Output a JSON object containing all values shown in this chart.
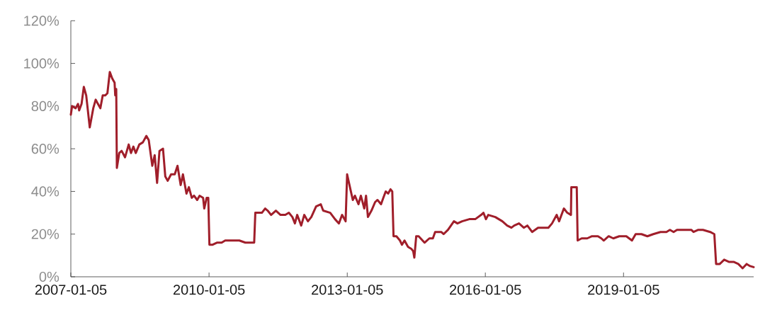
{
  "chart_data": {
    "type": "line",
    "color": "#a01e2a",
    "line_style": "solid",
    "xlim": [
      "2007-01-05",
      "2021-11-02"
    ],
    "xticks": [
      "2007-01-05",
      "2010-01-05",
      "2013-01-05",
      "2016-01-05",
      "2019-01-05"
    ],
    "ylim": [
      0,
      120
    ],
    "yticks": [
      {
        "value": 0,
        "label": "0%"
      },
      {
        "value": 20,
        "label": "20%"
      },
      {
        "value": 40,
        "label": "40%"
      },
      {
        "value": 60,
        "label": "60%"
      },
      {
        "value": 80,
        "label": "80%"
      },
      {
        "value": 100,
        "label": "100%"
      },
      {
        "value": 120,
        "label": "120%"
      }
    ],
    "x": [
      "2007-01-05",
      "2007-01-15",
      "2007-02-12",
      "2007-03-03",
      "2007-03-12",
      "2007-03-31",
      "2007-04-18",
      "2007-05-07",
      "2007-06-04",
      "2007-07-02",
      "2007-07-21",
      "2007-08-08",
      "2007-08-27",
      "2007-09-15",
      "2007-10-04",
      "2007-10-22",
      "2007-11-10",
      "2007-11-29",
      "2007-12-18",
      "2007-12-23",
      "2007-12-31",
      "2008-01-05",
      "2008-01-24",
      "2008-02-12",
      "2008-03-10",
      "2008-04-08",
      "2008-04-26",
      "2008-05-15",
      "2008-06-03",
      "2008-07-01",
      "2008-07-29",
      "2008-08-26",
      "2008-09-14",
      "2008-10-12",
      "2008-10-31",
      "2008-11-19",
      "2008-12-08",
      "2009-01-05",
      "2009-01-23",
      "2009-02-11",
      "2009-03-10",
      "2009-04-08",
      "2009-04-30",
      "2009-05-25",
      "2009-06-12",
      "2009-07-10",
      "2009-07-29",
      "2009-08-21",
      "2009-09-08",
      "2009-10-03",
      "2009-10-22",
      "2009-11-19",
      "2009-11-28",
      "2009-12-17",
      "2009-12-30",
      "2010-01-08",
      "2010-01-31",
      "2010-03-08",
      "2010-04-15",
      "2010-05-13",
      "2010-06-29",
      "2010-09-02",
      "2010-10-20",
      "2010-12-29",
      "2011-01-07",
      "2011-01-31",
      "2011-02-28",
      "2011-03-26",
      "2011-04-15",
      "2011-05-12",
      "2011-06-19",
      "2011-07-26",
      "2011-09-02",
      "2011-09-30",
      "2011-10-28",
      "2011-11-17",
      "2011-12-05",
      "2012-01-06",
      "2012-01-30",
      "2012-02-28",
      "2012-03-26",
      "2012-05-03",
      "2012-06-09",
      "2012-06-28",
      "2012-08-23",
      "2012-09-30",
      "2012-10-31",
      "2012-11-25",
      "2012-12-23",
      "2013-01-04",
      "2013-01-30",
      "2013-02-18",
      "2013-03-07",
      "2013-04-04",
      "2013-04-23",
      "2013-05-20",
      "2013-06-03",
      "2013-06-18",
      "2013-07-16",
      "2013-08-14",
      "2013-09-02",
      "2013-09-30",
      "2013-10-18",
      "2013-11-06",
      "2013-11-25",
      "2013-12-14",
      "2013-12-28",
      "2014-01-07",
      "2014-01-30",
      "2014-02-27",
      "2014-03-15",
      "2014-04-04",
      "2014-05-02",
      "2014-05-30",
      "2014-06-12",
      "2014-06-21",
      "2014-07-06",
      "2014-07-25",
      "2014-09-10",
      "2014-10-18",
      "2014-11-15",
      "2014-12-03",
      "2014-12-31",
      "2015-01-20",
      "2015-02-08",
      "2015-03-15",
      "2015-05-01",
      "2015-05-29",
      "2015-07-05",
      "2015-08-31",
      "2015-10-17",
      "2015-12-03",
      "2015-12-21",
      "2016-01-10",
      "2016-01-28",
      "2016-03-24",
      "2016-05-19",
      "2016-06-26",
      "2016-07-30",
      "2016-08-21",
      "2016-09-28",
      "2016-11-05",
      "2016-12-03",
      "2017-01-10",
      "2017-02-26",
      "2017-03-24",
      "2017-04-21",
      "2017-05-19",
      "2017-06-17",
      "2017-07-24",
      "2017-08-12",
      "2017-09-19",
      "2017-10-16",
      "2017-11-14",
      "2017-11-17",
      "2017-12-12",
      "2017-12-30",
      "2018-01-06",
      "2018-02-07",
      "2018-03-23",
      "2018-04-30",
      "2018-06-16",
      "2018-07-13",
      "2018-08-01",
      "2018-09-09",
      "2018-10-16",
      "2018-12-02",
      "2019-01-27",
      "2019-03-13",
      "2019-04-11",
      "2019-05-27",
      "2019-07-13",
      "2019-08-29",
      "2019-10-25",
      "2019-12-11",
      "2020-01-08",
      "2020-02-06",
      "2020-03-04",
      "2020-04-29",
      "2020-06-25",
      "2020-07-13",
      "2020-08-20",
      "2020-09-26",
      "2020-11-22",
      "2020-12-25",
      "2021-01-08",
      "2021-02-06",
      "2021-03-13",
      "2021-04-19",
      "2021-05-27",
      "2021-07-03",
      "2021-08-06",
      "2021-09-07",
      "2021-10-05",
      "2021-11-02"
    ],
    "values": [
      76,
      80,
      79,
      81,
      78,
      81,
      89,
      85,
      70,
      79,
      83,
      81,
      79,
      85,
      85,
      86,
      96,
      93,
      91,
      85,
      88,
      51,
      58,
      59,
      56,
      62,
      58,
      61,
      58,
      62,
      63,
      66,
      64,
      52,
      57,
      44,
      59,
      60,
      47,
      45,
      48,
      48,
      52,
      43,
      48,
      39,
      42,
      37,
      38,
      36,
      38,
      37,
      32,
      37,
      37,
      15,
      15,
      16,
      16,
      17,
      17,
      17,
      16,
      16,
      30,
      30,
      30,
      32,
      31,
      29,
      31,
      29,
      29,
      30,
      28,
      25,
      29,
      24,
      29,
      26,
      28,
      33,
      34,
      31,
      30,
      27,
      25,
      29,
      26,
      48,
      41,
      36,
      38,
      34,
      38,
      32,
      38,
      28,
      31,
      35,
      36,
      34,
      37,
      40,
      39,
      41,
      40,
      19,
      19,
      17,
      15,
      17,
      14,
      13,
      12,
      9,
      19,
      19,
      16,
      18,
      18,
      21,
      21,
      21,
      20,
      22,
      26,
      25,
      26,
      27,
      27,
      29,
      30,
      27,
      29,
      28,
      26,
      24,
      23,
      24,
      25,
      23,
      24,
      21,
      23,
      23,
      23,
      23,
      25,
      29,
      26,
      32,
      30,
      29,
      42,
      42,
      42,
      17,
      18,
      18,
      19,
      19,
      18,
      17,
      19,
      18,
      19,
      19,
      17,
      20,
      20,
      19,
      20,
      21,
      21,
      22,
      21,
      22,
      22,
      22,
      21,
      22,
      22,
      21,
      20,
      6,
      6,
      8,
      7,
      7,
      6,
      4,
      6,
      5,
      4.5
    ]
  }
}
